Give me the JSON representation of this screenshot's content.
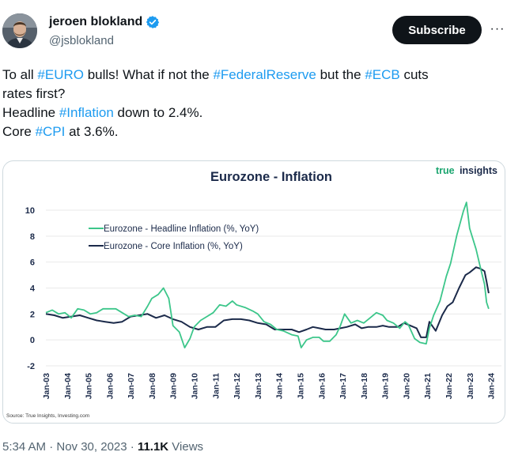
{
  "author": {
    "name": "jeroen blokland",
    "handle": "@jsblokland",
    "verified_icon": "verified-badge-icon"
  },
  "actions": {
    "subscribe_label": "Subscribe",
    "more_label": "···"
  },
  "tweet": {
    "line1": [
      {
        "t": "To all ",
        "tag": false
      },
      {
        "t": "#EURO",
        "tag": true
      },
      {
        "t": " bulls! What if not the ",
        "tag": false
      },
      {
        "t": "#FederalReserve",
        "tag": true
      },
      {
        "t": " but the ",
        "tag": false
      },
      {
        "t": "#ECB",
        "tag": true
      },
      {
        "t": " cuts",
        "tag": false
      }
    ],
    "line2": [
      {
        "t": "rates first?",
        "tag": false
      }
    ],
    "line3": [
      {
        "t": "Headline ",
        "tag": false
      },
      {
        "t": "#Inflation",
        "tag": true
      },
      {
        "t": " down to 2.4%.",
        "tag": false
      }
    ],
    "line4": [
      {
        "t": "Core ",
        "tag": false
      },
      {
        "t": "#CPI",
        "tag": true
      },
      {
        "t": " at 3.6%.",
        "tag": false
      }
    ]
  },
  "meta": {
    "time": "5:34 AM · Nov 30, 2023 · ",
    "views_count": "11.1K",
    "views_label": " Views"
  },
  "colors": {
    "headline": "#3cc68a",
    "core": "#1b2a4a",
    "hashtag": "#1d9bf0",
    "brand": "#1aa56f",
    "title": "#1b2a4a"
  },
  "chart_data": {
    "type": "line",
    "title": "Eurozone - Inflation",
    "brand_true": "true",
    "brand_insights": "insights",
    "source": "Source: True Insights, Investing.com",
    "ylim": [
      -2,
      10
    ],
    "yticks": [
      -2,
      0,
      2,
      4,
      6,
      8,
      10
    ],
    "xlim": [
      2003,
      2024.5
    ],
    "xtick_labels": [
      "Jan-03",
      "Jan-04",
      "Jan-05",
      "Jan-06",
      "Jan-07",
      "Jan-08",
      "Jan-09",
      "Jan-10",
      "Jan-11",
      "Jan-12",
      "Jan-13",
      "Jan-14",
      "Jan-15",
      "Jan-16",
      "Jan-17",
      "Jan-18",
      "Jan-19",
      "Jan-20",
      "Jan-21",
      "Jan-22",
      "Jan-23",
      "Jan-24"
    ],
    "legend_position": "top-left",
    "series": [
      {
        "name": "Eurozone - Headline Inflation (%, YoY)",
        "color": "#3cc68a",
        "points": [
          [
            2003.0,
            2.1
          ],
          [
            2003.3,
            2.3
          ],
          [
            2003.6,
            2.0
          ],
          [
            2003.9,
            2.1
          ],
          [
            2004.2,
            1.7
          ],
          [
            2004.5,
            2.4
          ],
          [
            2004.8,
            2.3
          ],
          [
            2005.1,
            2.0
          ],
          [
            2005.4,
            2.1
          ],
          [
            2005.7,
            2.4
          ],
          [
            2006.0,
            2.4
          ],
          [
            2006.3,
            2.4
          ],
          [
            2006.6,
            2.1
          ],
          [
            2006.9,
            1.8
          ],
          [
            2007.2,
            1.9
          ],
          [
            2007.5,
            1.8
          ],
          [
            2007.8,
            2.6
          ],
          [
            2008.0,
            3.2
          ],
          [
            2008.3,
            3.5
          ],
          [
            2008.55,
            4.0
          ],
          [
            2008.8,
            3.2
          ],
          [
            2009.0,
            1.1
          ],
          [
            2009.3,
            0.6
          ],
          [
            2009.55,
            -0.6
          ],
          [
            2009.8,
            0.1
          ],
          [
            2010.0,
            1.0
          ],
          [
            2010.3,
            1.5
          ],
          [
            2010.6,
            1.8
          ],
          [
            2010.9,
            2.1
          ],
          [
            2011.2,
            2.7
          ],
          [
            2011.5,
            2.6
          ],
          [
            2011.8,
            3.0
          ],
          [
            2012.0,
            2.7
          ],
          [
            2012.4,
            2.5
          ],
          [
            2012.8,
            2.2
          ],
          [
            2013.0,
            2.0
          ],
          [
            2013.3,
            1.4
          ],
          [
            2013.6,
            1.2
          ],
          [
            2013.9,
            0.8
          ],
          [
            2014.2,
            0.7
          ],
          [
            2014.6,
            0.4
          ],
          [
            2014.9,
            0.3
          ],
          [
            2015.05,
            -0.6
          ],
          [
            2015.3,
            0.0
          ],
          [
            2015.6,
            0.2
          ],
          [
            2015.9,
            0.2
          ],
          [
            2016.1,
            -0.1
          ],
          [
            2016.4,
            -0.1
          ],
          [
            2016.7,
            0.4
          ],
          [
            2016.9,
            1.1
          ],
          [
            2017.1,
            2.0
          ],
          [
            2017.4,
            1.3
          ],
          [
            2017.7,
            1.5
          ],
          [
            2018.0,
            1.3
          ],
          [
            2018.3,
            1.7
          ],
          [
            2018.6,
            2.1
          ],
          [
            2018.9,
            1.9
          ],
          [
            2019.1,
            1.5
          ],
          [
            2019.4,
            1.3
          ],
          [
            2019.7,
            0.9
          ],
          [
            2019.95,
            1.4
          ],
          [
            2020.1,
            1.2
          ],
          [
            2020.4,
            0.1
          ],
          [
            2020.65,
            -0.2
          ],
          [
            2020.95,
            -0.3
          ],
          [
            2021.1,
            0.9
          ],
          [
            2021.3,
            1.9
          ],
          [
            2021.6,
            3.0
          ],
          [
            2021.9,
            4.9
          ],
          [
            2022.1,
            5.9
          ],
          [
            2022.4,
            8.1
          ],
          [
            2022.7,
            9.9
          ],
          [
            2022.85,
            10.6
          ],
          [
            2023.0,
            8.6
          ],
          [
            2023.3,
            7.0
          ],
          [
            2023.55,
            5.3
          ],
          [
            2023.7,
            4.3
          ],
          [
            2023.8,
            2.9
          ],
          [
            2023.9,
            2.4
          ]
        ]
      },
      {
        "name": "Eurozone - Core Inflation (%, YoY)",
        "color": "#1b2a4a",
        "points": [
          [
            2003.0,
            2.0
          ],
          [
            2003.4,
            1.9
          ],
          [
            2003.8,
            1.7
          ],
          [
            2004.2,
            1.8
          ],
          [
            2004.6,
            1.9
          ],
          [
            2005.0,
            1.7
          ],
          [
            2005.4,
            1.5
          ],
          [
            2005.8,
            1.4
          ],
          [
            2006.2,
            1.3
          ],
          [
            2006.6,
            1.4
          ],
          [
            2007.0,
            1.8
          ],
          [
            2007.4,
            1.9
          ],
          [
            2007.8,
            2.0
          ],
          [
            2008.2,
            1.7
          ],
          [
            2008.6,
            1.9
          ],
          [
            2009.0,
            1.6
          ],
          [
            2009.4,
            1.4
          ],
          [
            2009.8,
            1.0
          ],
          [
            2010.2,
            0.8
          ],
          [
            2010.6,
            1.0
          ],
          [
            2011.0,
            1.0
          ],
          [
            2011.4,
            1.5
          ],
          [
            2011.8,
            1.6
          ],
          [
            2012.2,
            1.6
          ],
          [
            2012.6,
            1.5
          ],
          [
            2013.0,
            1.3
          ],
          [
            2013.4,
            1.2
          ],
          [
            2013.8,
            0.8
          ],
          [
            2014.2,
            0.8
          ],
          [
            2014.6,
            0.8
          ],
          [
            2014.95,
            0.6
          ],
          [
            2015.3,
            0.8
          ],
          [
            2015.6,
            1.0
          ],
          [
            2015.9,
            0.9
          ],
          [
            2016.2,
            0.8
          ],
          [
            2016.6,
            0.8
          ],
          [
            2016.9,
            0.9
          ],
          [
            2017.2,
            1.0
          ],
          [
            2017.6,
            1.2
          ],
          [
            2017.9,
            0.9
          ],
          [
            2018.2,
            1.0
          ],
          [
            2018.6,
            1.0
          ],
          [
            2018.9,
            1.1
          ],
          [
            2019.2,
            1.0
          ],
          [
            2019.6,
            1.0
          ],
          [
            2019.9,
            1.3
          ],
          [
            2020.2,
            1.1
          ],
          [
            2020.5,
            0.9
          ],
          [
            2020.7,
            0.2
          ],
          [
            2020.95,
            0.2
          ],
          [
            2021.1,
            1.4
          ],
          [
            2021.4,
            0.7
          ],
          [
            2021.7,
            1.9
          ],
          [
            2021.95,
            2.6
          ],
          [
            2022.2,
            2.9
          ],
          [
            2022.5,
            4.0
          ],
          [
            2022.8,
            5.0
          ],
          [
            2023.0,
            5.2
          ],
          [
            2023.3,
            5.6
          ],
          [
            2023.5,
            5.5
          ],
          [
            2023.7,
            5.3
          ],
          [
            2023.8,
            4.5
          ],
          [
            2023.9,
            3.6
          ]
        ]
      }
    ]
  }
}
